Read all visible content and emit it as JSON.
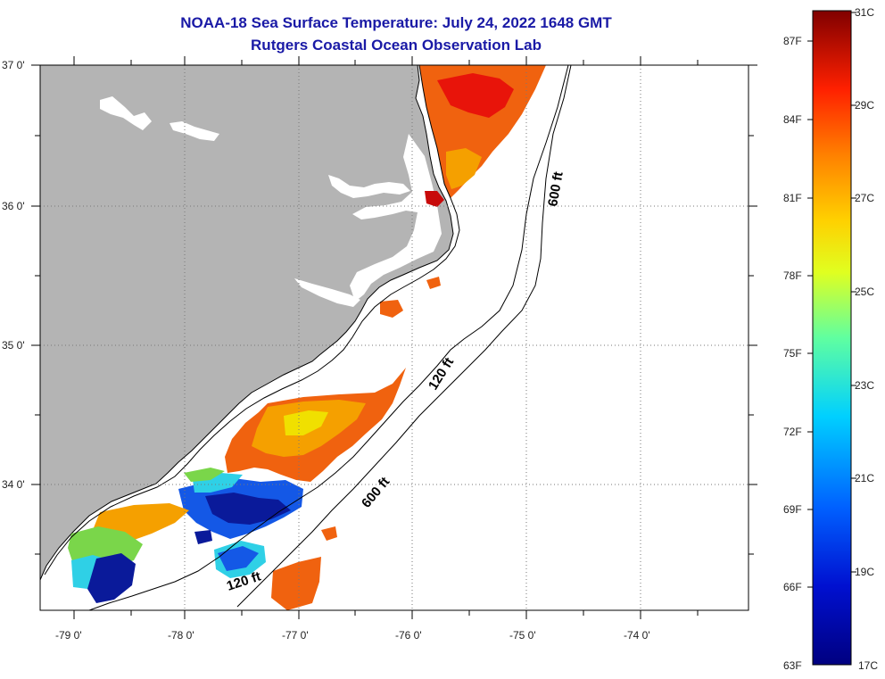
{
  "title": {
    "line1": "NOAA-18 Sea Surface Temperature:  July 24, 2022 1648 GMT",
    "line2": "Rutgers Coastal Ocean Observation Lab"
  },
  "map": {
    "lon_range": [
      -79.3,
      -73.0
    ],
    "lat_range": [
      33.1,
      37.0
    ],
    "lon_ticks": [
      "-79 0'",
      "-78 0'",
      "-77 0'",
      "-76 0'",
      "-75 0'",
      "-74 0'"
    ],
    "lat_ticks": [
      "37 0'",
      "36 0'",
      "35 0'",
      "34 0'"
    ],
    "contours": {
      "shelf_label": "120 ft",
      "slope_label": "600 ft"
    },
    "land_color": "#b4b4b4",
    "water_color": "#ffffff",
    "coastline_color": "#000000"
  },
  "colorbar": {
    "celsius_labels": [
      "31C",
      "29C",
      "27C",
      "25C",
      "23C",
      "21C",
      "19C",
      "17C"
    ],
    "fahrenheit_labels": [
      "87F",
      "84F",
      "81F",
      "78F",
      "75F",
      "72F",
      "69F",
      "66F",
      "63F"
    ],
    "range_c": [
      17,
      31
    ],
    "range_f": [
      63,
      87
    ]
  },
  "sst_palette": {
    "warm_orange": "#f0620f",
    "red": "#e8140a",
    "dark_red": "#c80a0a",
    "orange_yellow": "#f5a000",
    "yellow": "#f0e000",
    "green": "#7ad64a",
    "cyan": "#2fd0e6",
    "blue": "#1458e6",
    "dark_blue": "#0a1a9a"
  }
}
